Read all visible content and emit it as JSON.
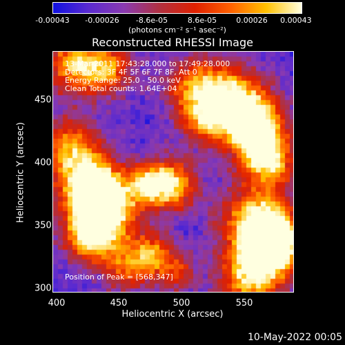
{
  "colorbar": {
    "ticks": [
      "-0.00043",
      "-0.00026",
      "-8.6e-05",
      "8.6e-05",
      "0.00026",
      "0.00043"
    ],
    "units": "(photons cm⁻² s⁻¹ asec⁻²)",
    "colors": [
      "#1010e0",
      "#5a2ad0",
      "#8a3ab0",
      "#b03040",
      "#e02000",
      "#ff6000",
      "#ffc000",
      "#ffffe0"
    ]
  },
  "title": "Reconstructed RHESSI Image",
  "info": {
    "time": "13-Mar-2011 17:43:28.000 to 17:49:28.000",
    "detectors": "Detectors: 3F 4F 5F 6F 7F 8F, Att 0",
    "energy": "Energy Range: 25.0 - 50.0 keV",
    "clean": "Clean     Total counts: 1.64E+04",
    "peak": "Position of Peak = [568,347]"
  },
  "x_axis": {
    "label": "Heliocentric X (arcsec)",
    "ticks": [
      "400",
      "450",
      "500",
      "550"
    ]
  },
  "y_axis": {
    "label": "Heliocentric Y (arcsec)",
    "ticks": [
      "450",
      "400",
      "350",
      "300"
    ]
  },
  "footer_date": "10-May-2022 00:05"
}
